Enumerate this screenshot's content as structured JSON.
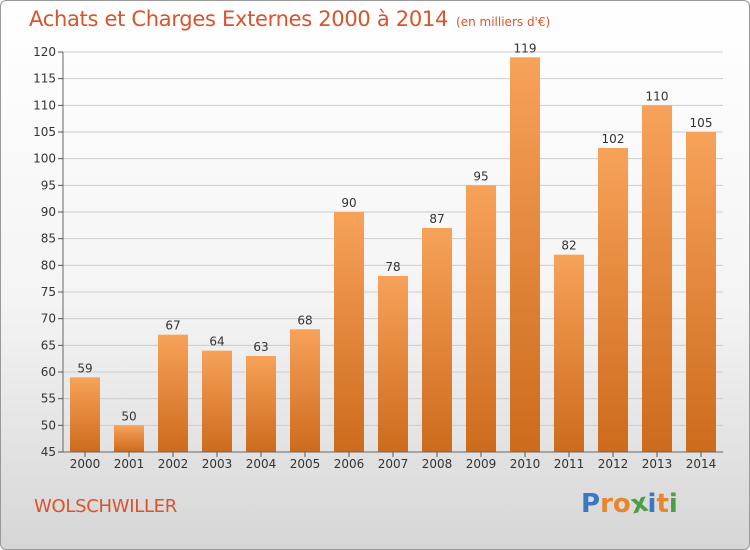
{
  "header": {
    "title": "Achats et Charges Externes 2000 à 2014",
    "subtitle": "(en milliers d'€)"
  },
  "footer": {
    "commune": "WOLSCHWILLER",
    "brand": "Proxiti",
    "brand_letters": [
      {
        "char": "P",
        "color": "#3a78c2"
      },
      {
        "char": "r",
        "color": "#e8862a"
      },
      {
        "char": "o",
        "color": "#e8862a"
      },
      {
        "char": "x",
        "color": "#4aa043"
      },
      {
        "char": "i",
        "color": "#3a78c2"
      },
      {
        "char": "t",
        "color": "#e8862a"
      },
      {
        "char": "i",
        "color": "#4aa043"
      }
    ]
  },
  "colors": {
    "accent": "#d9532b",
    "bar_top": "#f7a25a",
    "bar_bottom": "#cd6b1c",
    "grid": "#cccccc",
    "text": "#333333"
  },
  "chart_data": {
    "type": "bar",
    "title": "Achats et Charges Externes 2000 à 2014",
    "subtitle": "(en milliers d'€)",
    "xlabel": "",
    "ylabel": "",
    "categories": [
      "2000",
      "2001",
      "2002",
      "2003",
      "2004",
      "2005",
      "2006",
      "2007",
      "2008",
      "2009",
      "2010",
      "2011",
      "2012",
      "2013",
      "2014"
    ],
    "values": [
      59,
      50,
      67,
      64,
      63,
      68,
      90,
      78,
      87,
      95,
      119,
      82,
      102,
      110,
      105
    ],
    "data_labels": [
      "59",
      "50",
      "67",
      "64",
      "63",
      "68",
      "90",
      "78",
      "87",
      "95",
      "119",
      "82",
      "102",
      "110",
      "105"
    ],
    "ylim": [
      45,
      120
    ],
    "yticks": [
      45,
      50,
      55,
      60,
      65,
      70,
      75,
      80,
      85,
      90,
      95,
      100,
      105,
      110,
      115,
      120
    ],
    "ytick_labels": [
      "45",
      "50",
      "55",
      "60",
      "65",
      "70",
      "75",
      "80",
      "85",
      "90",
      "95",
      "100",
      "105",
      "110",
      "115",
      "120"
    ],
    "grid": true,
    "legend": "none"
  }
}
